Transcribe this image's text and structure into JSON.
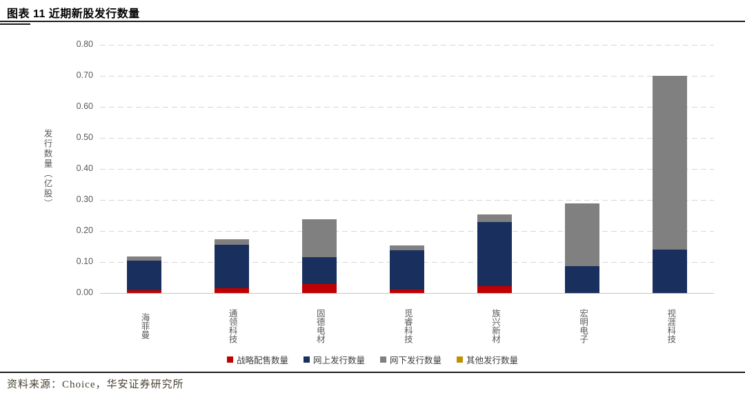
{
  "header": {
    "title": "图表 11 近期新股发行数量"
  },
  "footer": {
    "source": "资料来源：Choice，华安证券研究所"
  },
  "chart_data": {
    "type": "bar",
    "stacked": true,
    "title": "近期新股发行数量",
    "xlabel": "",
    "ylabel": "发行数量（亿股）",
    "ylim": [
      0,
      0.8
    ],
    "ytick_step": 0.1,
    "yticks": [
      "0.00",
      "0.10",
      "0.20",
      "0.30",
      "0.40",
      "0.50",
      "0.60",
      "0.70",
      "0.80"
    ],
    "grid": "horizontal-dashed",
    "gridline_color": "#d6d6d6",
    "legend_position": "bottom",
    "axis_text_color": "#595959",
    "categories": [
      "海菲曼",
      "通领科技",
      "固德电材",
      "觅睿科技",
      "族兴新材",
      "宏明电子",
      "视涯科技"
    ],
    "series": [
      {
        "name": "战略配售数量",
        "color": "#C00000",
        "values": [
          0.01,
          0.015,
          0.03,
          0.012,
          0.022,
          0.0,
          0.0
        ]
      },
      {
        "name": "网上发行数量",
        "color": "#192F5E",
        "values": [
          0.095,
          0.14,
          0.085,
          0.125,
          0.207,
          0.087,
          0.14
        ]
      },
      {
        "name": "网下发行数量",
        "color": "#808080",
        "values": [
          0.012,
          0.018,
          0.122,
          0.016,
          0.024,
          0.203,
          0.56
        ]
      },
      {
        "name": "其他发行数量",
        "color": "#BF9000",
        "values": [
          0.0,
          0.0,
          0.0,
          0.0,
          0.0,
          0.0,
          0.0
        ]
      }
    ],
    "totals": [
      0.117,
      0.173,
      0.237,
      0.153,
      0.253,
      0.29,
      0.7
    ]
  }
}
